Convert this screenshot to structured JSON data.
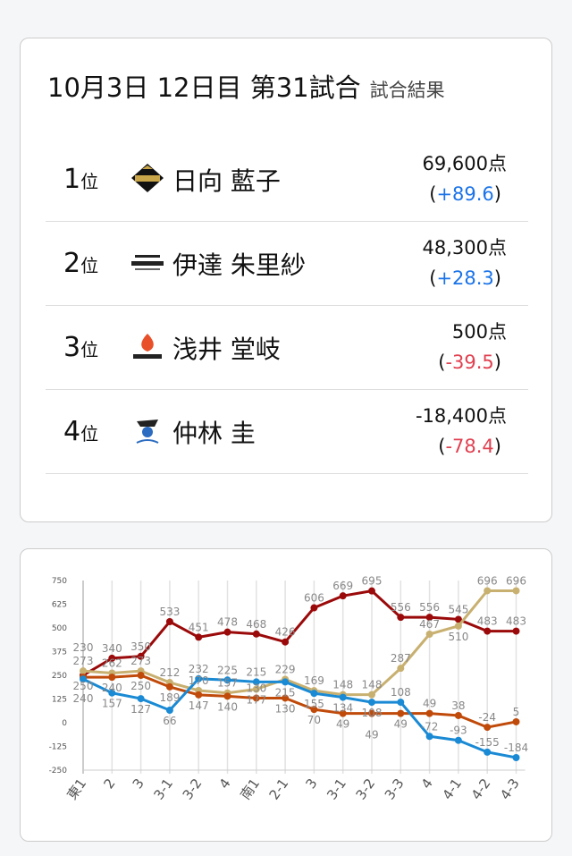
{
  "header": {
    "title": "10月3日  12日目  第31試合",
    "subtitle": "試合結果"
  },
  "results": [
    {
      "rank": "1",
      "rank_suffix": "位",
      "team_logo": "akasaka-drivens-logo",
      "name": "日向 藍子",
      "points": "69,600点",
      "diff": "+89.6",
      "sign": "pos"
    },
    {
      "rank": "2",
      "rank_suffix": "位",
      "team_logo": "konami-logo",
      "name": "伊達 朱里紗",
      "points": "48,300点",
      "diff": "+28.3",
      "sign": "pos"
    },
    {
      "rank": "3",
      "rank_suffix": "位",
      "team_logo": "phoenix-logo",
      "name": "浅井 堂岐",
      "points": "500点",
      "diff": "-39.5",
      "sign": "neg"
    },
    {
      "rank": "4",
      "rank_suffix": "位",
      "team_logo": "pirates-logo",
      "name": "仲林 圭",
      "points": "-18,400点",
      "diff": "-78.4",
      "sign": "neg"
    }
  ],
  "chart_data": {
    "type": "line",
    "categories": [
      "東1",
      "2",
      "3",
      "3-1",
      "3-2",
      "4",
      "南1",
      "2-1",
      "3",
      "3-1",
      "3-2",
      "3-3",
      "4",
      "4-1",
      "4-2",
      "4-3"
    ],
    "ylim": [
      -250,
      750
    ],
    "yticks": [
      750,
      625,
      500,
      375,
      250,
      125,
      0,
      -125,
      -250
    ],
    "grid": "vertical",
    "data_labels": true,
    "series": [
      {
        "color": "#9b0a0a",
        "values": [
          250,
          340,
          350,
          533,
          451,
          478,
          468,
          426,
          606,
          669,
          695,
          556,
          556,
          545,
          483,
          483
        ]
      },
      {
        "color": "#c8b070",
        "values": [
          273,
          262,
          273,
          212,
          170,
          157,
          177,
          229,
          169,
          148,
          148,
          287,
          467,
          510,
          696,
          696
        ]
      },
      {
        "color": "#c04a0a",
        "values": [
          240,
          240,
          250,
          189,
          147,
          140,
          130,
          130,
          70,
          49,
          49,
          49,
          49,
          38,
          -24,
          5
        ]
      },
      {
        "color": "#1a8ad4",
        "values": [
          230,
          157,
          127,
          66,
          232,
          225,
          215,
          215,
          155,
          134,
          108,
          108,
          -72,
          -93,
          -155,
          -184
        ]
      }
    ]
  }
}
